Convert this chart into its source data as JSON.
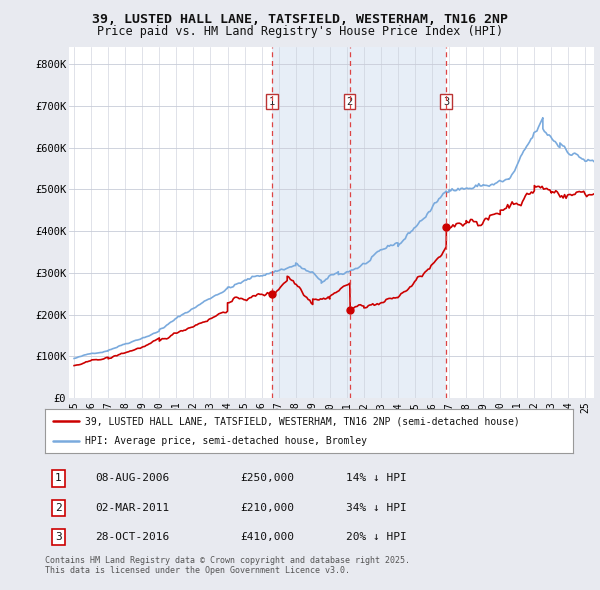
{
  "title_line1": "39, LUSTED HALL LANE, TATSFIELD, WESTERHAM, TN16 2NP",
  "title_line2": "Price paid vs. HM Land Registry's House Price Index (HPI)",
  "ylim": [
    0,
    840000
  ],
  "yticks": [
    0,
    100000,
    200000,
    300000,
    400000,
    500000,
    600000,
    700000,
    800000
  ],
  "ytick_labels": [
    "£0",
    "£100K",
    "£200K",
    "£300K",
    "£400K",
    "£500K",
    "£600K",
    "£700K",
    "£800K"
  ],
  "background_color": "#e8eaf0",
  "plot_background": "#ffffff",
  "grid_color": "#c8ccd8",
  "sale_color": "#cc0000",
  "hpi_color": "#7aaadd",
  "sale_label": "39, LUSTED HALL LANE, TATSFIELD, WESTERHAM, TN16 2NP (semi-detached house)",
  "hpi_label": "HPI: Average price, semi-detached house, Bromley",
  "vline_color": "#dd4444",
  "shade_color": "#dde8f5",
  "footnote": "Contains HM Land Registry data © Crown copyright and database right 2025.\nThis data is licensed under the Open Government Licence v3.0.",
  "transactions": [
    {
      "num": 1,
      "date": "08-AUG-2006",
      "price": 250000,
      "pct": "14%",
      "x_year": 2006.6
    },
    {
      "num": 2,
      "date": "02-MAR-2011",
      "price": 210000,
      "pct": "34%",
      "x_year": 2011.17
    },
    {
      "num": 3,
      "date": "28-OCT-2016",
      "price": 410000,
      "pct": "20%",
      "x_year": 2016.83
    }
  ],
  "xmin": 1994.7,
  "xmax": 2025.5,
  "xtick_years": [
    1995,
    1996,
    1997,
    1998,
    1999,
    2000,
    2001,
    2002,
    2003,
    2004,
    2005,
    2006,
    2007,
    2008,
    2009,
    2010,
    2011,
    2012,
    2013,
    2014,
    2015,
    2016,
    2017,
    2018,
    2019,
    2020,
    2021,
    2022,
    2023,
    2024,
    2025
  ]
}
